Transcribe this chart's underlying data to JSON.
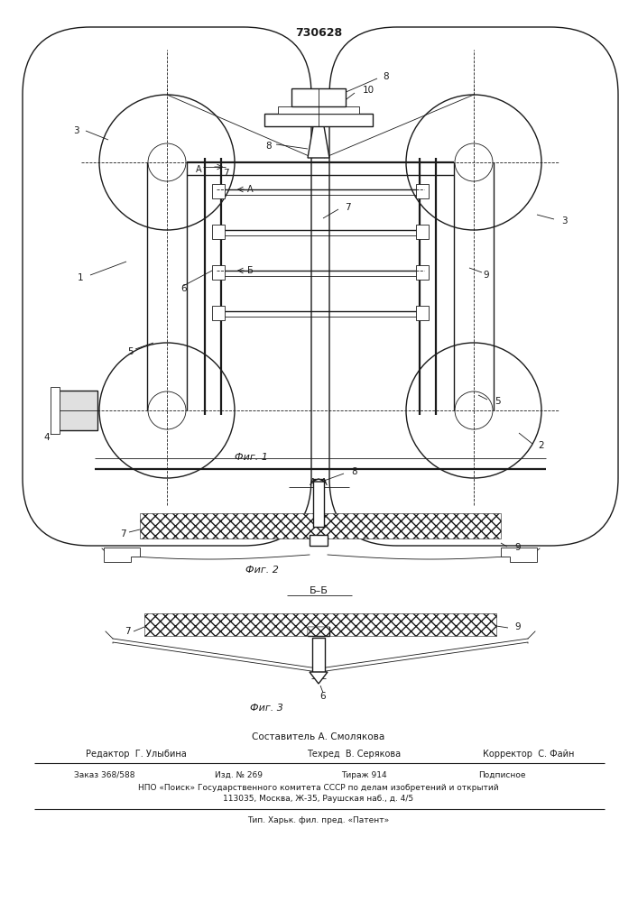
{
  "patent_number": "730628",
  "fig1_label": "Фиг. 1",
  "fig2_label": "Фиг. 2",
  "fig3_label": "Фиг. 3",
  "section_aa": "A–A",
  "section_bb": "Б–Б",
  "composer": "Составитель А. Смолякова",
  "editor": "Редактор  Г. Улыбина",
  "techred": "Техред  В. Серякова",
  "corrector": "Корректор  С. Файн",
  "order": "Заказ 368/588",
  "izdanie": "Изд. № 269",
  "tirazh": "Тираж 914",
  "podpisnoe": "Подписное",
  "npo_line": "НПО «Поиск» Государственного комитета СССР по делам изобретений и открытий",
  "address": "113035, Москва, Ж-35, Раушская наб., д. 4/5",
  "tip_line": "Тип. Харьк. фил. пред. «Патент»",
  "bg_color": "#ffffff",
  "line_color": "#1a1a1a"
}
